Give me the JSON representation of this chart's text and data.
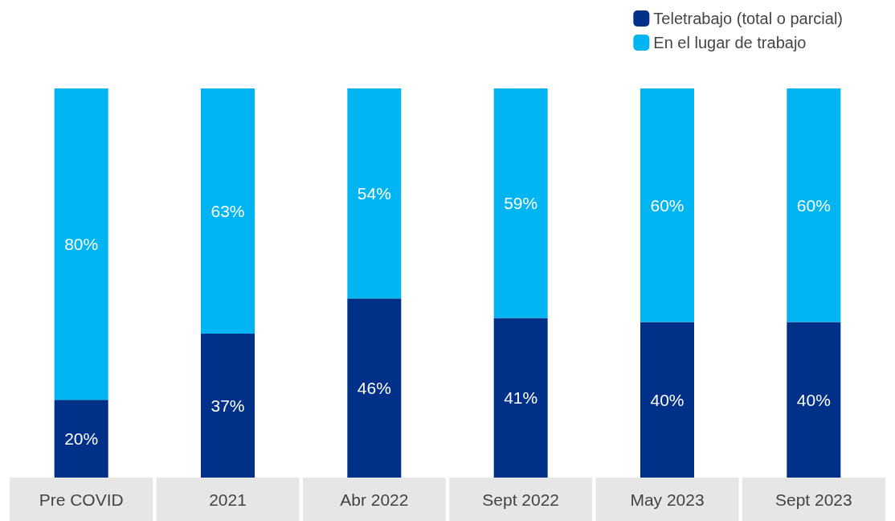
{
  "chart_data": {
    "type": "bar",
    "stacked": true,
    "categories": [
      "Pre COVID",
      "2021",
      "Abr 2022",
      "Sept 2022",
      "May 2023",
      "Sept 2023"
    ],
    "series": [
      {
        "name": "Teletrabajo (total o parcial)",
        "color": "#003087",
        "values": [
          20,
          37,
          46,
          41,
          40,
          40
        ],
        "value_labels": [
          "20%",
          "37%",
          "46%",
          "41%",
          "40%",
          "40%"
        ]
      },
      {
        "name": "En el lugar de trabajo",
        "color": "#00b5f1",
        "values": [
          80,
          63,
          54,
          59,
          60,
          60
        ],
        "value_labels": [
          "80%",
          "63%",
          "54%",
          "59%",
          "60%",
          "60%"
        ]
      }
    ],
    "legend": "top right"
  }
}
